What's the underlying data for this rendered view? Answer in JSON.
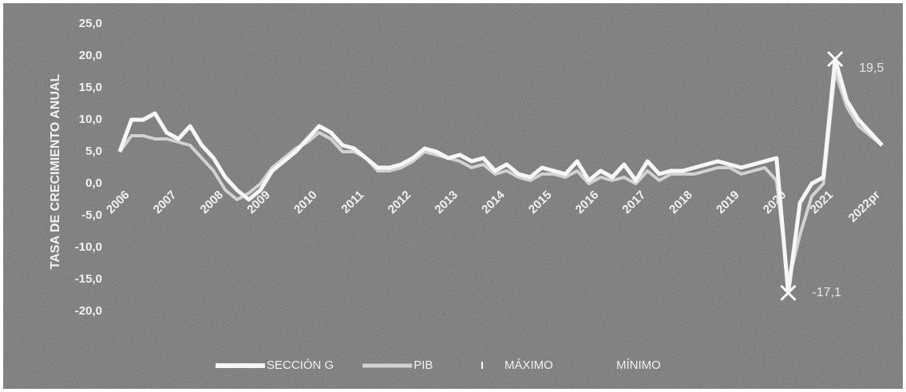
{
  "chart_data": {
    "type": "line",
    "y_label": "TASA DE CRECIMIENTO ANUAL",
    "categories": [
      "2006",
      null,
      null,
      null,
      "2007",
      null,
      null,
      null,
      "2008",
      null,
      null,
      null,
      "2009",
      null,
      null,
      null,
      "2010",
      null,
      null,
      null,
      "2011",
      null,
      null,
      null,
      "2012",
      null,
      null,
      null,
      "2013",
      null,
      null,
      null,
      "2014",
      null,
      null,
      null,
      "2015",
      null,
      null,
      null,
      "2016",
      null,
      null,
      null,
      "2017",
      null,
      null,
      null,
      "2018",
      null,
      null,
      null,
      "2019",
      null,
      null,
      null,
      "2020",
      null,
      null,
      null,
      "2021",
      null,
      null,
      null,
      "2022pr",
      null
    ],
    "series": [
      {
        "name": "SECCIÓN G",
        "color": "#f6f6f6",
        "width": 5,
        "values": [
          5,
          10,
          10,
          11,
          8,
          7,
          9,
          6,
          4,
          1,
          -1,
          -2.5,
          -1,
          2,
          3.5,
          5,
          7,
          9,
          8,
          6,
          5.5,
          4,
          2.5,
          2.5,
          3,
          4,
          5.5,
          5,
          4,
          4.5,
          3.5,
          4,
          2,
          3,
          1.5,
          1,
          2.5,
          2,
          1.5,
          3.5,
          0.5,
          2,
          1,
          3,
          0.5,
          3.5,
          1.5,
          2,
          2,
          2.5,
          3,
          3.5,
          3,
          2.5,
          3,
          3.5,
          4,
          -17.1,
          -3,
          0,
          1,
          19.5,
          13,
          10,
          8,
          6
        ]
      },
      {
        "name": "PIB",
        "color": "#d2d2d2",
        "width": 4,
        "values": [
          5,
          7.5,
          7.5,
          7,
          7,
          6.5,
          6,
          4,
          2,
          -1,
          -2.5,
          -1.5,
          0,
          2.5,
          4,
          5.5,
          6.5,
          8,
          7,
          5,
          5,
          4,
          2,
          2,
          2.5,
          3.5,
          5,
          4.5,
          4,
          3.5,
          2.5,
          3,
          1.5,
          2,
          1,
          0.5,
          1.5,
          1.5,
          1,
          2,
          0,
          1,
          0.5,
          1,
          0,
          2,
          0.5,
          1.5,
          1.5,
          1.5,
          2,
          2.5,
          2.5,
          1.5,
          2,
          2.5,
          0.5,
          -15.5,
          -8,
          -2,
          0,
          17.5,
          12,
          9,
          7.5,
          6
        ]
      }
    ],
    "markers": [
      {
        "name": "MÁXIMO",
        "label": "19,5",
        "value": 19.5
      },
      {
        "name": "MÍNIMO",
        "label": "-17,1",
        "value": -17.1
      }
    ],
    "ylim": [
      -20,
      25
    ],
    "yticks": [
      {
        "value": -20,
        "label": "-20,0"
      },
      {
        "value": -15,
        "label": "-15,0"
      },
      {
        "value": -10,
        "label": "-10,0"
      },
      {
        "value": -5,
        "label": "-5,0"
      },
      {
        "value": 0,
        "label": "0,0"
      },
      {
        "value": 5,
        "label": "5,0"
      },
      {
        "value": 10,
        "label": "10,0"
      },
      {
        "value": 15,
        "label": "15,0"
      },
      {
        "value": 20,
        "label": "20,0"
      },
      {
        "value": 25,
        "label": "25,0"
      }
    ]
  }
}
